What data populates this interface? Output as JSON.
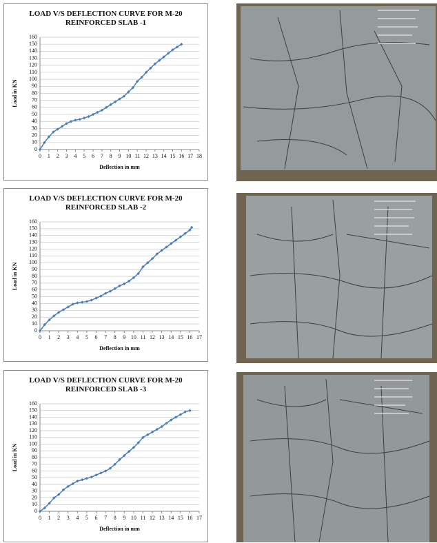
{
  "chart_data": [
    {
      "type": "line",
      "title": "LOAD V/S DEFLECTION CURVE FOR M-20 REINFORCED SLAB -1",
      "x_label": "Deflection in mm",
      "y_label": "Load  in  KN",
      "color": "#4a7ebb",
      "grid": true,
      "xlim": [
        0,
        18
      ],
      "xticks": [
        0,
        1,
        2,
        3,
        4,
        5,
        6,
        7,
        8,
        9,
        10,
        11,
        12,
        13,
        14,
        15,
        16,
        17,
        18
      ],
      "ylim": [
        0,
        160
      ],
      "yticks": [
        0,
        10,
        20,
        30,
        40,
        50,
        60,
        70,
        80,
        90,
        100,
        110,
        120,
        130,
        140,
        150,
        160
      ],
      "x": [
        0,
        0.5,
        1,
        1.5,
        2,
        2.5,
        3,
        3.5,
        4,
        4.5,
        5,
        5.5,
        6,
        6.5,
        7,
        7.5,
        8,
        8.5,
        9,
        9.5,
        10,
        10.5,
        11,
        11.5,
        12,
        12.5,
        13,
        13.5,
        14,
        14.5,
        15,
        15.5,
        16
      ],
      "values": [
        0,
        10,
        18,
        25,
        29,
        33,
        37,
        40,
        42,
        43,
        45,
        47,
        50,
        53,
        56,
        60,
        64,
        68,
        72,
        76,
        82,
        88,
        97,
        103,
        110,
        116,
        122,
        127,
        132,
        137,
        142,
        146,
        150
      ]
    },
    {
      "type": "line",
      "title": "LOAD V/S DEFLECTION CURVE FOR M-20 REINFORCED SLAB -2",
      "x_label": "Deflection in mm",
      "y_label": "Load in KN",
      "color": "#4a7ebb",
      "grid": true,
      "xlim": [
        0,
        17
      ],
      "xticks": [
        0,
        1,
        2,
        3,
        4,
        5,
        6,
        7,
        8,
        9,
        10,
        11,
        12,
        13,
        14,
        15,
        16,
        17
      ],
      "ylim": [
        0,
        160
      ],
      "yticks": [
        0,
        10,
        20,
        30,
        40,
        50,
        60,
        70,
        80,
        90,
        100,
        110,
        120,
        130,
        140,
        150,
        160
      ],
      "x": [
        0,
        0.5,
        1,
        1.5,
        2,
        2.5,
        3,
        3.5,
        4,
        4.5,
        5,
        5.5,
        6,
        6.5,
        7,
        7.5,
        8,
        8.5,
        9,
        9.5,
        10,
        10.5,
        11,
        11.5,
        12,
        12.5,
        13,
        13.5,
        14,
        14.5,
        15,
        15.5,
        16,
        16.2
      ],
      "values": [
        0,
        9,
        16,
        22,
        27,
        31,
        35,
        39,
        41,
        42,
        43,
        45,
        48,
        51,
        55,
        58,
        62,
        66,
        69,
        73,
        78,
        84,
        94,
        100,
        106,
        113,
        118,
        123,
        128,
        133,
        138,
        143,
        148,
        152
      ]
    },
    {
      "type": "line",
      "title": "LOAD V/S DEFLECTION CURVE FOR M-20 REINFORCED SLAB -3",
      "x_label": "Deflection in mm",
      "y_label": "Load in KN",
      "color": "#4a7ebb",
      "grid": true,
      "xlim": [
        0,
        17
      ],
      "xticks": [
        0,
        1,
        2,
        3,
        4,
        5,
        6,
        7,
        8,
        9,
        10,
        11,
        12,
        13,
        14,
        15,
        16,
        17
      ],
      "ylim": [
        0,
        160
      ],
      "yticks": [
        0,
        10,
        20,
        30,
        40,
        50,
        60,
        70,
        80,
        90,
        100,
        110,
        120,
        130,
        140,
        150,
        160
      ],
      "x": [
        0,
        0.5,
        1,
        1.5,
        2,
        2.5,
        3,
        3.5,
        4,
        4.5,
        5,
        5.5,
        6,
        6.5,
        7,
        7.5,
        8,
        8.5,
        9,
        9.5,
        10,
        10.5,
        11,
        11.5,
        12,
        12.5,
        13,
        13.5,
        14,
        14.5,
        15,
        15.5,
        16
      ],
      "values": [
        0,
        5,
        12,
        20,
        25,
        32,
        37,
        41,
        45,
        47,
        49,
        51,
        54,
        57,
        60,
        64,
        70,
        77,
        83,
        89,
        95,
        102,
        110,
        114,
        118,
        122,
        126,
        131,
        136,
        140,
        144,
        148,
        150
      ]
    }
  ]
}
